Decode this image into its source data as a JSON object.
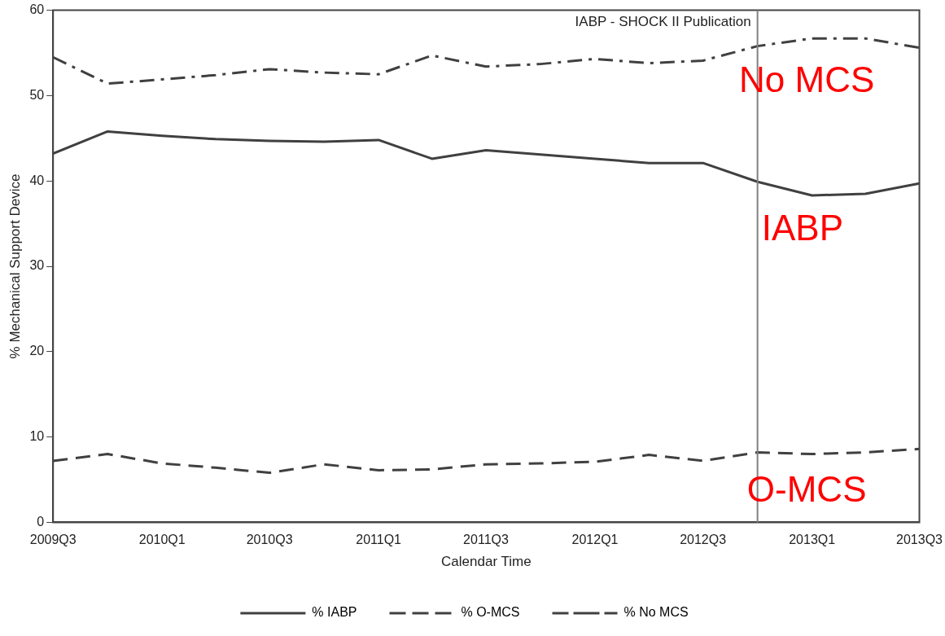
{
  "chart_data": {
    "type": "line",
    "xlabel": "Calendar Time",
    "ylabel": "% Mechanical Support Device",
    "x": [
      "2009-07",
      "2009-10",
      "2010-01",
      "2010-04",
      "2010-07",
      "2010-10",
      "2011-01",
      "2011-04",
      "2011-07",
      "2011-10",
      "2012-01",
      "2012-04",
      "2012-07",
      "2012-10",
      "2013-01",
      "2013-04",
      "2013-07"
    ],
    "xlim": [
      "2009-07",
      "2013-07"
    ],
    "xticks": [
      {
        "value": "2009-07",
        "label": "2009Q3"
      },
      {
        "value": "2010-01",
        "label": "2010Q1"
      },
      {
        "value": "2010-07",
        "label": "2010Q3"
      },
      {
        "value": "2011-01",
        "label": "2011Q1"
      },
      {
        "value": "2011-07",
        "label": "2011Q3"
      },
      {
        "value": "2012-01",
        "label": "2012Q1"
      },
      {
        "value": "2012-07",
        "label": "2012Q3"
      },
      {
        "value": "2013-01",
        "label": "2013Q1"
      },
      {
        "value": "2013-07",
        "label": "2013Q3"
      }
    ],
    "ylim": [
      0,
      60
    ],
    "yticks": [
      0,
      10,
      20,
      30,
      40,
      50,
      60
    ],
    "grid": false,
    "marker": "none",
    "legend": "bottom",
    "series": [
      {
        "name": "% IABP",
        "color": "#404040",
        "line_style": "solid",
        "values": [
          43.2,
          45.8,
          45.3,
          44.9,
          44.7,
          44.6,
          44.8,
          42.6,
          43.6,
          43.1,
          42.6,
          42.1,
          42.1,
          39.9,
          38.3,
          38.5,
          39.7
        ]
      },
      {
        "name": "% O-MCS",
        "color": "#404040",
        "line_style": "dashed",
        "values": [
          7.2,
          8.0,
          6.9,
          6.4,
          5.8,
          6.8,
          6.1,
          6.2,
          6.8,
          6.9,
          7.1,
          7.9,
          7.2,
          8.2,
          8.0,
          8.2,
          8.6
        ]
      },
      {
        "name": "% No MCS",
        "color": "#404040",
        "line_style": "dashdot",
        "values": [
          54.5,
          51.4,
          51.9,
          52.4,
          53.1,
          52.7,
          52.5,
          54.7,
          53.4,
          53.7,
          54.3,
          53.8,
          54.1,
          55.8,
          56.7,
          56.7,
          55.6
        ]
      }
    ],
    "ref_lines": [
      {
        "axis": "x",
        "value": "2012-10",
        "label": "IABP - SHOCK II Publication",
        "color": "#808080"
      }
    ],
    "annotations": [
      "No MCS",
      "IABP",
      "O-MCS"
    ]
  }
}
